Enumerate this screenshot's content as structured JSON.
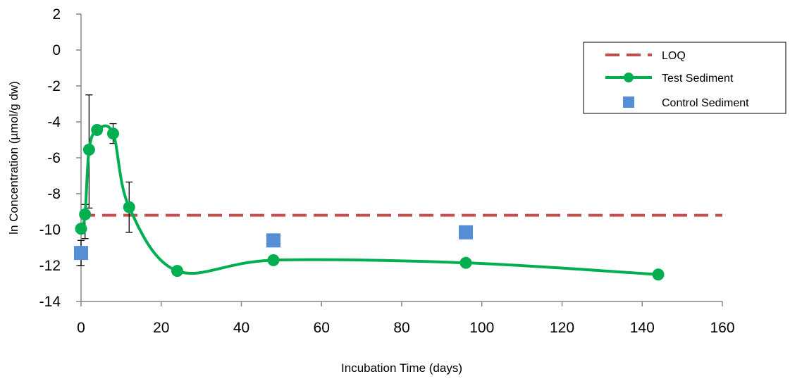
{
  "chart_data": {
    "type": "line",
    "xlabel": "Incubation Time (days)",
    "ylabel": "ln Concentration (µmol/g dw)",
    "xlim": [
      0,
      160
    ],
    "ylim": [
      -14,
      2
    ],
    "x_ticks": [
      0,
      20,
      40,
      60,
      80,
      100,
      120,
      140,
      160
    ],
    "y_ticks": [
      2,
      0,
      -2,
      -4,
      -6,
      -8,
      -10,
      -12,
      -14
    ],
    "grid": false,
    "legend_position": "top-right",
    "series": [
      {
        "name": "LOQ",
        "style": "dashed-line",
        "color": "#C0504D",
        "x": [
          0,
          160
        ],
        "y": [
          -9.2,
          -9.2
        ]
      },
      {
        "name": "Test Sediment",
        "style": "smooth-line-markers",
        "color": "#00B050",
        "x": [
          0,
          1,
          2,
          4,
          8,
          12,
          24,
          48,
          96,
          144
        ],
        "y": [
          -9.95,
          -9.15,
          -5.55,
          -4.45,
          -4.65,
          -8.75,
          -12.3,
          -11.7,
          -11.85,
          -12.5
        ],
        "error_low": [
          null,
          -8.6,
          -2.5,
          -4.2,
          -4.1,
          -7.35,
          null,
          null,
          null,
          null
        ],
        "error_high": [
          null,
          -10.5,
          -8.8,
          -4.7,
          -5.2,
          -10.15,
          null,
          null,
          null,
          null
        ]
      },
      {
        "name": "Control Sediment",
        "style": "square-markers",
        "color": "#558ED5",
        "x": [
          0,
          48,
          96
        ],
        "y": [
          -11.3,
          -10.6,
          -10.15
        ],
        "error_low": [
          -10.6,
          null,
          null
        ],
        "error_high": [
          -12.0,
          null,
          null
        ]
      }
    ]
  }
}
